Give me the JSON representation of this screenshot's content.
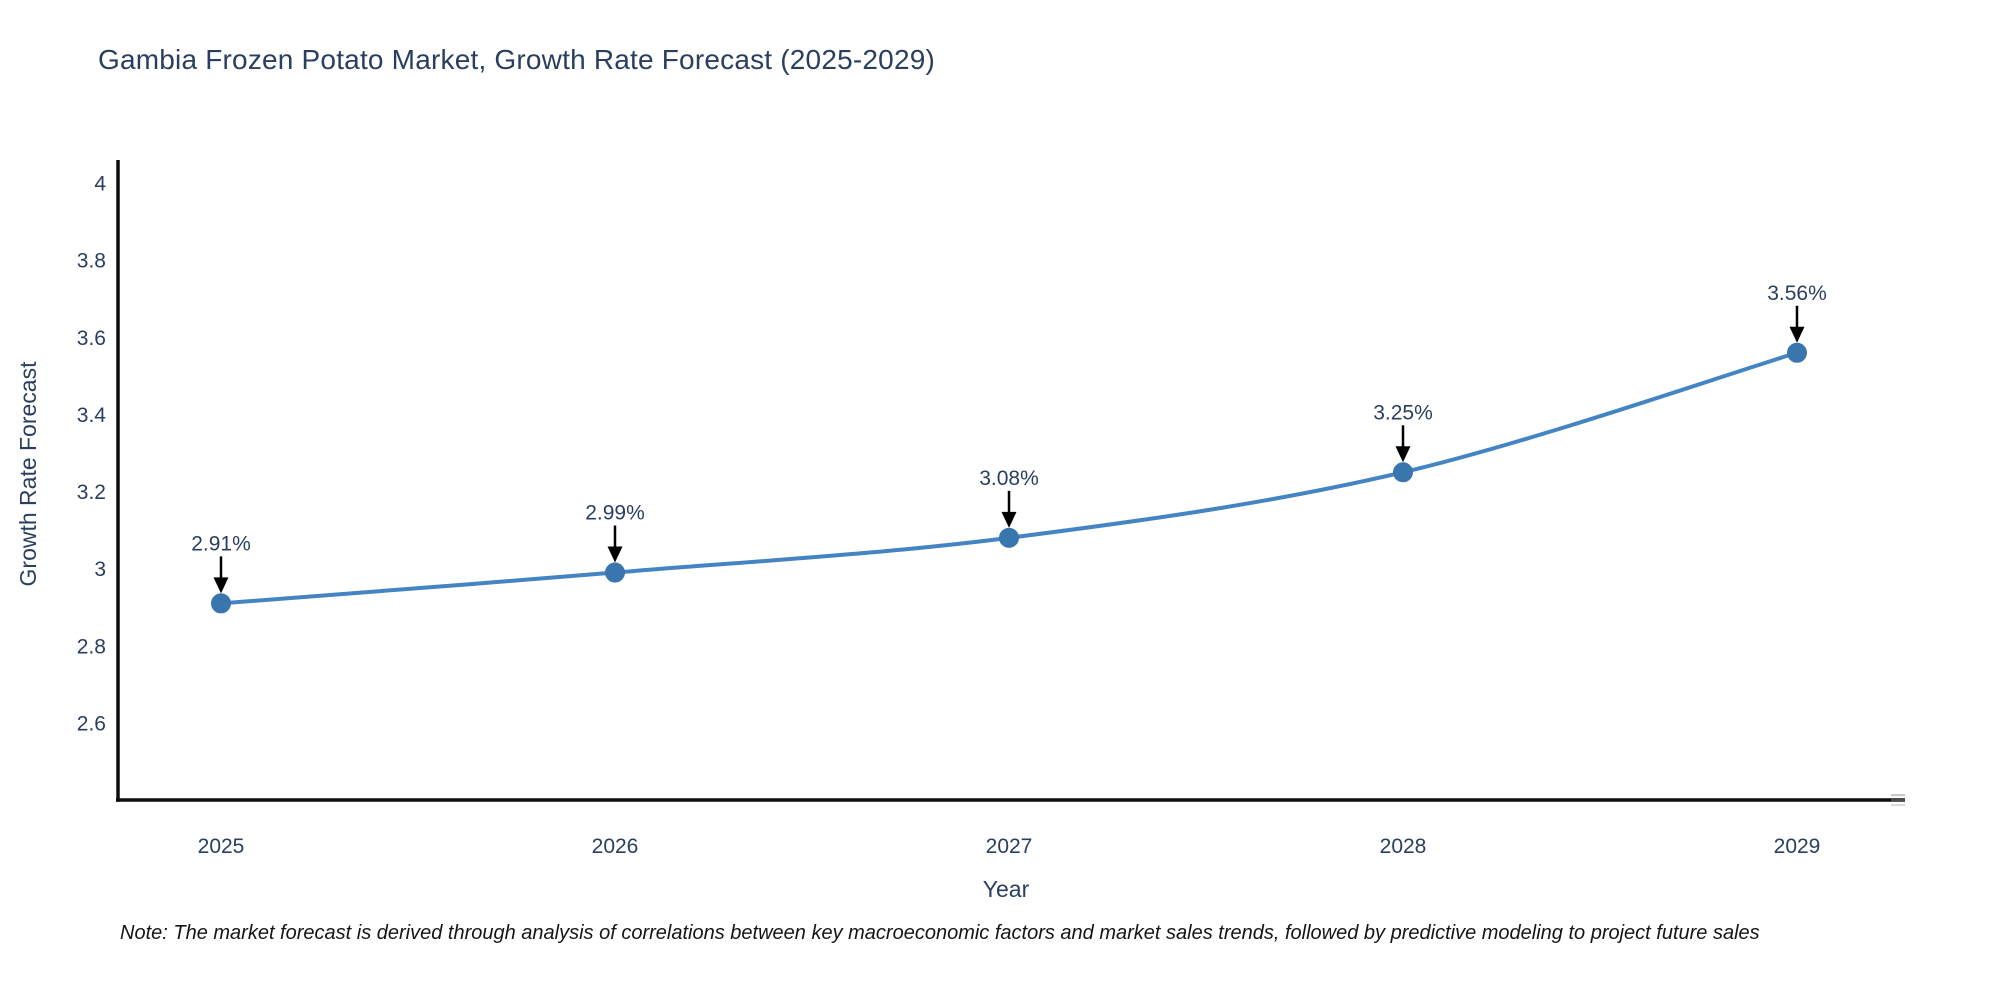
{
  "header": {
    "title": "Gambia Frozen Potato Market, Growth Rate Forecast (2025-2029)"
  },
  "chart_data": {
    "type": "line",
    "title": "Gambia Frozen Potato Market, Growth Rate Forecast (2025-2029)",
    "x": [
      "2025",
      "2026",
      "2027",
      "2028",
      "2029"
    ],
    "series": [
      {
        "name": "Growth Rate Forecast",
        "values": [
          2.91,
          2.99,
          3.08,
          3.25,
          3.56
        ]
      }
    ],
    "point_labels": [
      "2.91%",
      "2.99%",
      "3.08%",
      "3.25%",
      "3.56%"
    ],
    "xlabel": "Year",
    "ylabel": "Growth Rate Forecast",
    "yticks": [
      4,
      3.8,
      3.6,
      3.4,
      3.2,
      3,
      2.8,
      2.6
    ],
    "ytick_labels": [
      "4",
      "3.8",
      "3.6",
      "3.4",
      "3.2",
      "3",
      "2.8",
      "2.6"
    ],
    "ylim": [
      2.4,
      4.06
    ],
    "line_shape": "spline",
    "grid": false,
    "legend": "none",
    "colors": {
      "line": "#4484c2",
      "marker": "#3a76ae",
      "axis": "#0d0d0d",
      "text": "#2a3f5f",
      "annotation_arrow": "#000000"
    }
  },
  "footer": {
    "note": "Note: The market forecast is derived through analysis of correlations between key macroeconomic factors and market sales trends, followed by predictive modeling to project future sales"
  }
}
